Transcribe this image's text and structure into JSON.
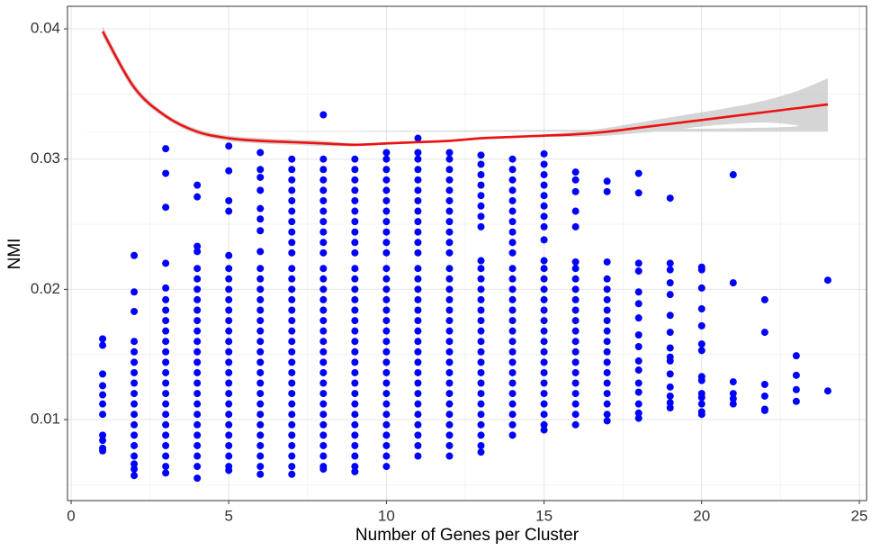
{
  "chart_data": {
    "type": "scatter",
    "xlabel": "Number of Genes per Cluster",
    "ylabel": "NMI",
    "xlim": [
      -0.115,
      25.23
    ],
    "ylim": [
      0.00378,
      0.04173
    ],
    "xticks": [
      0,
      5,
      10,
      15,
      20,
      25
    ],
    "yticks": [
      0.01,
      0.02,
      0.03,
      0.04
    ],
    "x_minor_ticks": [
      2.5,
      7.5,
      12.5,
      17.5,
      22.5
    ],
    "y_minor_ticks": [
      0.005,
      0.015,
      0.025,
      0.035
    ],
    "grid": true,
    "series": [
      {
        "color": "#0000ff",
        "x": [
          1,
          1,
          1,
          1,
          1,
          1,
          1,
          1,
          1,
          1,
          1,
          2,
          2,
          2,
          2,
          2,
          2,
          2,
          2,
          2,
          2,
          2,
          2,
          2,
          2,
          2,
          2,
          2,
          2,
          3,
          3,
          3,
          3,
          3,
          3,
          3,
          3,
          3,
          3,
          3,
          3,
          3,
          3,
          3,
          3,
          3,
          3,
          3,
          3,
          3,
          3,
          3,
          4,
          4,
          4,
          4,
          4,
          4,
          4,
          4,
          4,
          4,
          4,
          4,
          4,
          4,
          4,
          4,
          4,
          4,
          4,
          4,
          4,
          4,
          4,
          4,
          4,
          5,
          5,
          5,
          5,
          5,
          5,
          5,
          5,
          5,
          5,
          5,
          5,
          5,
          5,
          5,
          5,
          5,
          5,
          5,
          5,
          5,
          5,
          5,
          5,
          5,
          5,
          6,
          6,
          6,
          6,
          6,
          6,
          6,
          6,
          6,
          6,
          6,
          6,
          6,
          6,
          6,
          6,
          6,
          6,
          6,
          6,
          6,
          6,
          6,
          6,
          6,
          6,
          6,
          6,
          6,
          7,
          7,
          7,
          7,
          7,
          7,
          7,
          7,
          7,
          7,
          7,
          7,
          7,
          7,
          7,
          7,
          7,
          7,
          7,
          7,
          7,
          7,
          7,
          7,
          7,
          7,
          7,
          7,
          7,
          7,
          7,
          8,
          8,
          8,
          8,
          8,
          8,
          8,
          8,
          8,
          8,
          8,
          8,
          8,
          8,
          8,
          8,
          8,
          8,
          8,
          8,
          8,
          8,
          8,
          8,
          8,
          8,
          8,
          8,
          8,
          8,
          8,
          8,
          9,
          9,
          9,
          9,
          9,
          9,
          9,
          9,
          9,
          9,
          9,
          9,
          9,
          9,
          9,
          9,
          9,
          9,
          9,
          9,
          9,
          9,
          9,
          9,
          9,
          9,
          9,
          9,
          9,
          9,
          9,
          10,
          10,
          10,
          10,
          10,
          10,
          10,
          10,
          10,
          10,
          10,
          10,
          10,
          10,
          10,
          10,
          10,
          10,
          10,
          10,
          10,
          10,
          10,
          10,
          10,
          10,
          10,
          10,
          10,
          10,
          10,
          11,
          11,
          11,
          11,
          11,
          11,
          11,
          11,
          11,
          11,
          11,
          11,
          11,
          11,
          11,
          11,
          11,
          11,
          11,
          11,
          11,
          11,
          11,
          11,
          11,
          11,
          11,
          11,
          11,
          11,
          11,
          12,
          12,
          12,
          12,
          12,
          12,
          12,
          12,
          12,
          12,
          12,
          12,
          12,
          12,
          12,
          12,
          12,
          12,
          12,
          12,
          12,
          12,
          12,
          12,
          12,
          12,
          12,
          12,
          12,
          12,
          13,
          13,
          13,
          13,
          13,
          13,
          13,
          13,
          13,
          13,
          13,
          13,
          13,
          13,
          13,
          13,
          13,
          13,
          13,
          13,
          13,
          13,
          13,
          13,
          13,
          13,
          13,
          13,
          14,
          14,
          14,
          14,
          14,
          14,
          14,
          14,
          14,
          14,
          14,
          14,
          14,
          14,
          14,
          14,
          14,
          14,
          14,
          14,
          14,
          14,
          14,
          14,
          14,
          14,
          14,
          15,
          15,
          15,
          15,
          15,
          15,
          15,
          15,
          15,
          15,
          15,
          15,
          15,
          15,
          15,
          15,
          15,
          15,
          15,
          15,
          15,
          15,
          15,
          15,
          15,
          15,
          15,
          16,
          16,
          16,
          16,
          16,
          16,
          16,
          16,
          16,
          16,
          16,
          16,
          16,
          16,
          16,
          16,
          16,
          16,
          16,
          16,
          16,
          16,
          17,
          17,
          17,
          17,
          17,
          17,
          17,
          17,
          17,
          17,
          17,
          17,
          17,
          17,
          17,
          17,
          17,
          17,
          18,
          18,
          18,
          18,
          18,
          18,
          18,
          18,
          18,
          18,
          18,
          18,
          18,
          18,
          18,
          18,
          19,
          19,
          19,
          19,
          19,
          19,
          19,
          19,
          19,
          19,
          19,
          19,
          19,
          19,
          19,
          20,
          20,
          20,
          20,
          20,
          20,
          20,
          20,
          20,
          20,
          20,
          20,
          20,
          20,
          21,
          21,
          21,
          21,
          21,
          21,
          22,
          22,
          22,
          22,
          22,
          22,
          23,
          23,
          23,
          23,
          24,
          24
        ],
        "y": [
          0.0162,
          0.0157,
          0.0135,
          0.0126,
          0.0119,
          0.0112,
          0.0104,
          0.0088,
          0.0084,
          0.0078,
          0.0076,
          0.0226,
          0.0198,
          0.0183,
          0.016,
          0.0152,
          0.0144,
          0.0136,
          0.0128,
          0.012,
          0.0112,
          0.0104,
          0.0096,
          0.0088,
          0.008,
          0.0072,
          0.0066,
          0.0062,
          0.0057,
          0.0308,
          0.0289,
          0.0263,
          0.022,
          0.0201,
          0.0192,
          0.0184,
          0.0176,
          0.0168,
          0.016,
          0.0152,
          0.0144,
          0.0136,
          0.0128,
          0.012,
          0.0112,
          0.0104,
          0.0096,
          0.0088,
          0.008,
          0.0072,
          0.0064,
          0.0059,
          0.028,
          0.0271,
          0.0233,
          0.0229,
          0.0216,
          0.0208,
          0.02,
          0.0192,
          0.0184,
          0.0176,
          0.0168,
          0.016,
          0.0152,
          0.0144,
          0.0136,
          0.0128,
          0.012,
          0.0112,
          0.0104,
          0.0096,
          0.0088,
          0.008,
          0.0072,
          0.0064,
          0.0055,
          0.031,
          0.0291,
          0.0268,
          0.026,
          0.0226,
          0.0216,
          0.0208,
          0.02,
          0.0192,
          0.0184,
          0.0176,
          0.0168,
          0.016,
          0.0152,
          0.0144,
          0.0136,
          0.0128,
          0.012,
          0.0112,
          0.0104,
          0.0096,
          0.0088,
          0.008,
          0.0072,
          0.0064,
          0.0061,
          0.0305,
          0.0292,
          0.0286,
          0.0276,
          0.0262,
          0.0254,
          0.0245,
          0.0229,
          0.0216,
          0.0208,
          0.02,
          0.0192,
          0.0184,
          0.0176,
          0.0168,
          0.016,
          0.0152,
          0.0144,
          0.0136,
          0.0128,
          0.012,
          0.0112,
          0.0104,
          0.0096,
          0.0088,
          0.008,
          0.0072,
          0.0064,
          0.0058,
          0.03,
          0.0292,
          0.0284,
          0.0276,
          0.0268,
          0.026,
          0.0252,
          0.0244,
          0.0236,
          0.0228,
          0.0216,
          0.0208,
          0.02,
          0.0192,
          0.0184,
          0.0176,
          0.0168,
          0.016,
          0.0152,
          0.0144,
          0.0136,
          0.0128,
          0.012,
          0.0112,
          0.0104,
          0.0096,
          0.0088,
          0.008,
          0.0072,
          0.0064,
          0.0058,
          0.0334,
          0.03,
          0.0292,
          0.0284,
          0.0276,
          0.0268,
          0.026,
          0.0252,
          0.0244,
          0.0236,
          0.0228,
          0.0216,
          0.0208,
          0.02,
          0.0192,
          0.0184,
          0.0176,
          0.0168,
          0.016,
          0.0152,
          0.0144,
          0.0136,
          0.0128,
          0.012,
          0.0112,
          0.0104,
          0.0096,
          0.0088,
          0.008,
          0.0072,
          0.0064,
          0.0062,
          0.03,
          0.0292,
          0.0284,
          0.0276,
          0.0268,
          0.026,
          0.0252,
          0.0244,
          0.0236,
          0.0228,
          0.0216,
          0.0208,
          0.02,
          0.0192,
          0.0184,
          0.0176,
          0.0168,
          0.016,
          0.0152,
          0.0144,
          0.0136,
          0.0128,
          0.012,
          0.0112,
          0.0104,
          0.0096,
          0.0088,
          0.008,
          0.0072,
          0.0064,
          0.006,
          0.0305,
          0.03,
          0.0292,
          0.0284,
          0.0276,
          0.0268,
          0.026,
          0.0252,
          0.0244,
          0.0236,
          0.0228,
          0.0216,
          0.0208,
          0.02,
          0.0192,
          0.0184,
          0.0176,
          0.0168,
          0.016,
          0.0152,
          0.0144,
          0.0136,
          0.0128,
          0.012,
          0.0112,
          0.0104,
          0.0096,
          0.0088,
          0.008,
          0.0072,
          0.0064,
          0.0316,
          0.0305,
          0.03,
          0.0292,
          0.0284,
          0.0276,
          0.0268,
          0.026,
          0.0252,
          0.0244,
          0.0236,
          0.0228,
          0.0216,
          0.0208,
          0.02,
          0.0192,
          0.0184,
          0.0176,
          0.0168,
          0.016,
          0.0152,
          0.0144,
          0.0136,
          0.0128,
          0.012,
          0.0112,
          0.0104,
          0.0096,
          0.0088,
          0.008,
          0.0072,
          0.0305,
          0.03,
          0.0292,
          0.0284,
          0.0276,
          0.0268,
          0.026,
          0.0252,
          0.0244,
          0.0236,
          0.0228,
          0.0216,
          0.0208,
          0.02,
          0.0192,
          0.0184,
          0.0176,
          0.0168,
          0.016,
          0.0152,
          0.0144,
          0.0136,
          0.0128,
          0.012,
          0.0112,
          0.0104,
          0.0096,
          0.0088,
          0.008,
          0.0072,
          0.0303,
          0.0296,
          0.0288,
          0.028,
          0.0272,
          0.0264,
          0.0256,
          0.0248,
          0.0222,
          0.0216,
          0.0208,
          0.02,
          0.0192,
          0.0184,
          0.0176,
          0.0168,
          0.016,
          0.0152,
          0.0144,
          0.0136,
          0.0128,
          0.012,
          0.0112,
          0.0104,
          0.0096,
          0.0088,
          0.008,
          0.0075,
          0.03,
          0.0292,
          0.0284,
          0.0276,
          0.0268,
          0.026,
          0.0252,
          0.0244,
          0.0236,
          0.0228,
          0.0216,
          0.0208,
          0.02,
          0.0192,
          0.0184,
          0.0176,
          0.0168,
          0.016,
          0.0152,
          0.0144,
          0.0136,
          0.0128,
          0.012,
          0.0112,
          0.0104,
          0.0096,
          0.0088,
          0.0304,
          0.0296,
          0.0288,
          0.028,
          0.0272,
          0.0264,
          0.0256,
          0.0248,
          0.0238,
          0.0222,
          0.0216,
          0.0208,
          0.02,
          0.0192,
          0.0184,
          0.0176,
          0.0168,
          0.016,
          0.0152,
          0.0144,
          0.0136,
          0.0128,
          0.012,
          0.0112,
          0.0104,
          0.0096,
          0.0092,
          0.029,
          0.0284,
          0.0275,
          0.026,
          0.0248,
          0.0221,
          0.0216,
          0.0208,
          0.02,
          0.0192,
          0.0184,
          0.0176,
          0.0168,
          0.016,
          0.0152,
          0.0144,
          0.0136,
          0.0128,
          0.012,
          0.0112,
          0.0104,
          0.0096,
          0.0283,
          0.0275,
          0.0221,
          0.0208,
          0.02,
          0.0192,
          0.0184,
          0.0176,
          0.0168,
          0.016,
          0.0152,
          0.0144,
          0.0136,
          0.0128,
          0.012,
          0.0112,
          0.0104,
          0.0099,
          0.0289,
          0.0274,
          0.022,
          0.0214,
          0.0198,
          0.0189,
          0.0178,
          0.0165,
          0.0156,
          0.0145,
          0.0138,
          0.0128,
          0.0121,
          0.0112,
          0.0105,
          0.0101,
          0.027,
          0.022,
          0.0215,
          0.0205,
          0.0196,
          0.018,
          0.0167,
          0.0155,
          0.0148,
          0.0145,
          0.0135,
          0.0125,
          0.0118,
          0.0113,
          0.0109,
          0.0217,
          0.0215,
          0.0201,
          0.0185,
          0.0172,
          0.0158,
          0.0153,
          0.0133,
          0.013,
          0.012,
          0.0117,
          0.0112,
          0.0106,
          0.0104,
          0.0288,
          0.0205,
          0.0129,
          0.012,
          0.0116,
          0.0112,
          0.0192,
          0.0167,
          0.0127,
          0.0118,
          0.0108,
          0.0107,
          0.0149,
          0.0134,
          0.0123,
          0.0114,
          0.0207,
          0.0122
        ]
      }
    ],
    "smooth": {
      "color": "#ee1111",
      "band_color": "#bebebe",
      "x": [
        1,
        2,
        3,
        4,
        5,
        6,
        7,
        8,
        9,
        10,
        11,
        12,
        13,
        14,
        15,
        16,
        17,
        18,
        19,
        20,
        21,
        22,
        23,
        24
      ],
      "y": [
        0.0398,
        0.0355,
        0.0333,
        0.0321,
        0.0316,
        0.0314,
        0.0313,
        0.0312,
        0.0311,
        0.0312,
        0.0313,
        0.0314,
        0.0316,
        0.0317,
        0.0318,
        0.0319,
        0.0321,
        0.0324,
        0.0327,
        0.033,
        0.0333,
        0.0336,
        0.0339,
        0.0342
      ],
      "lower": [
        0.0394,
        0.0352,
        0.0331,
        0.0319,
        0.0314,
        0.0312,
        0.0311,
        0.031,
        0.031,
        0.0311,
        0.0312,
        0.0313,
        0.0315,
        0.0316,
        0.0317,
        0.0317,
        0.0318,
        0.032,
        0.0322,
        0.0325,
        0.0327,
        0.0328,
        0.0326,
        0.0321
      ],
      "upper": [
        0.0402,
        0.0358,
        0.0335,
        0.0323,
        0.0318,
        0.0316,
        0.0315,
        0.0314,
        0.0312,
        0.0313,
        0.0314,
        0.0315,
        0.0317,
        0.0318,
        0.0319,
        0.0321,
        0.0324,
        0.0328,
        0.0332,
        0.0336,
        0.034,
        0.0345,
        0.0352,
        0.0362
      ]
    }
  }
}
